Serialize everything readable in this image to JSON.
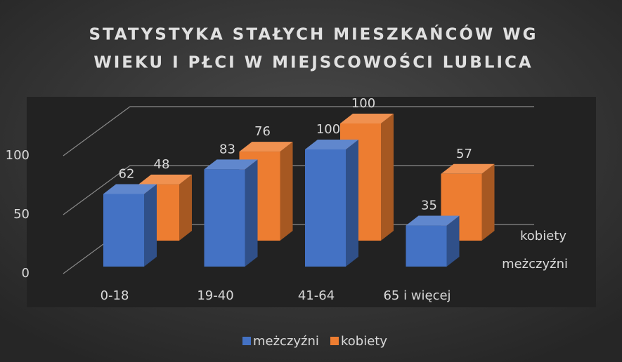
{
  "chart_data": {
    "type": "bar3d",
    "title": [
      "STATYSTYKA STAŁYCH MIESZKAŃCÓW WG",
      "WIEKU I PŁCI W MIEJSCOWOŚCI LUBLICA"
    ],
    "categories": [
      "0-18",
      "19-40",
      "41-64",
      "65 i więcej"
    ],
    "series": [
      {
        "name": "meżczyźni",
        "color": "#4472c4",
        "values": [
          62,
          83,
          100,
          35
        ]
      },
      {
        "name": "kobiety",
        "color": "#ed7d31",
        "values": [
          48,
          76,
          100,
          57
        ]
      }
    ],
    "ylim": [
      0,
      100
    ],
    "yticks": [
      0,
      50,
      100
    ],
    "grid": true,
    "legend": "bottom"
  }
}
